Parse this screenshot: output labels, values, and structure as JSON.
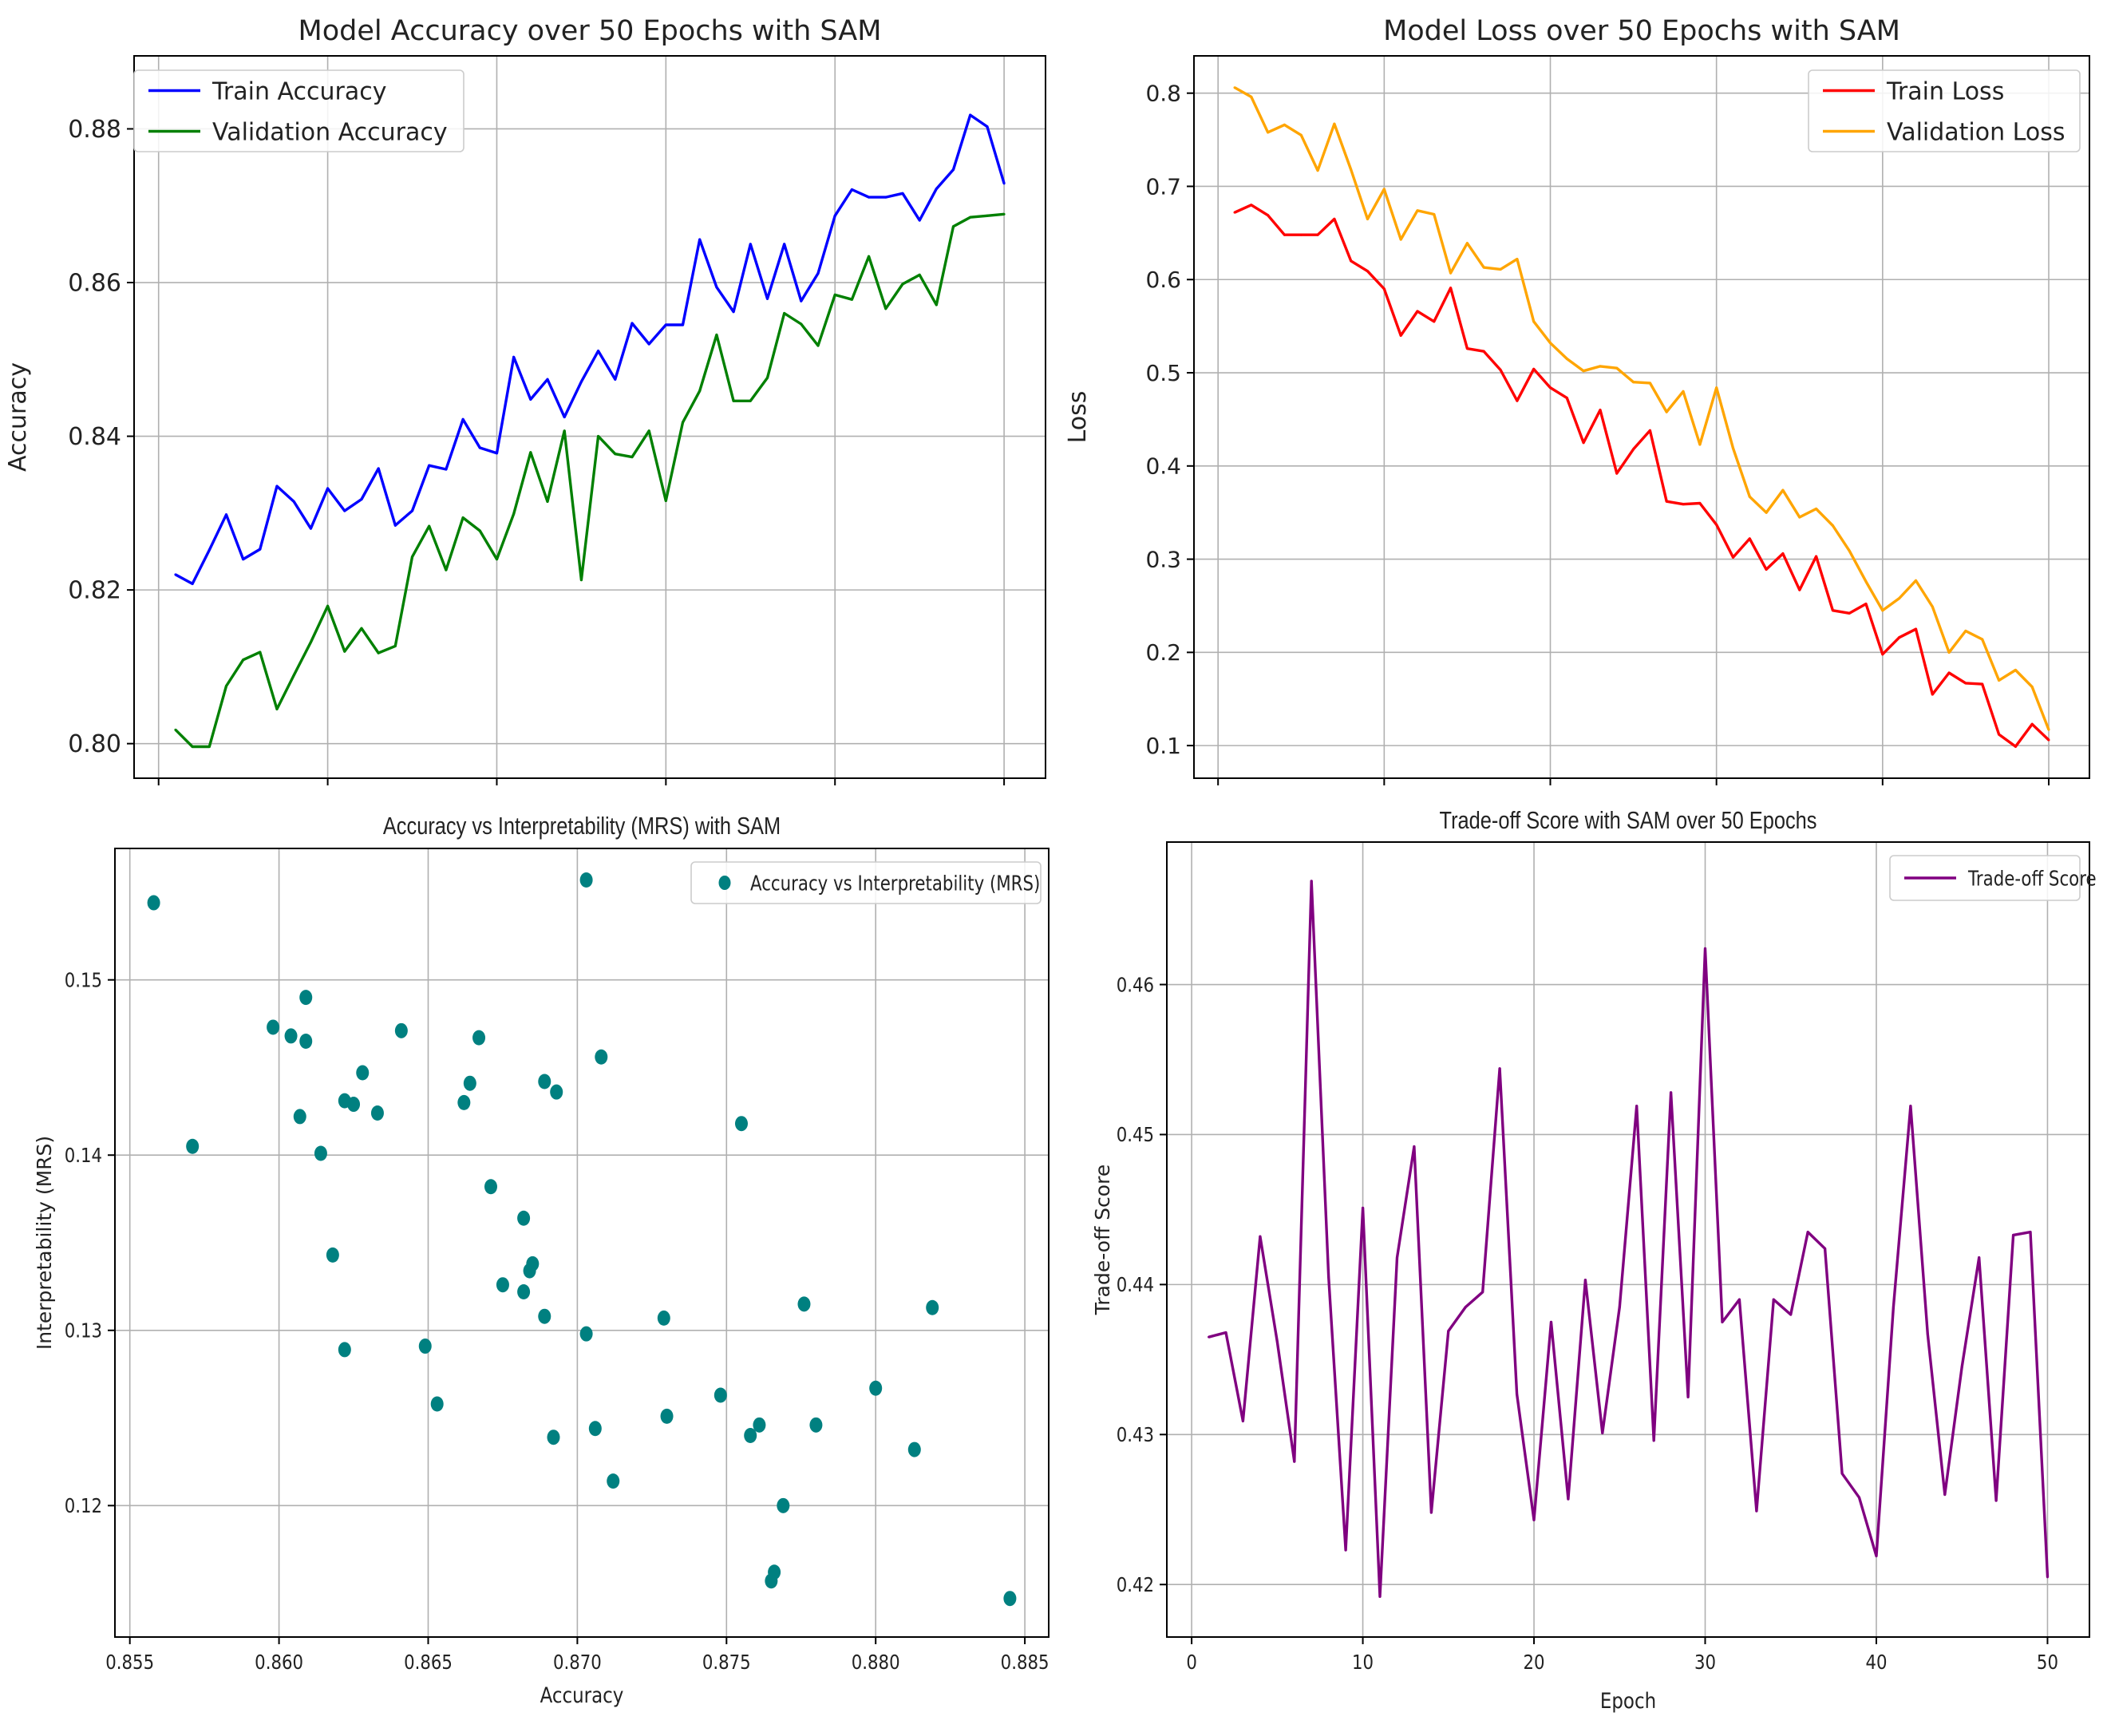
{
  "chart_data": [
    {
      "type": "line",
      "title": "Model Accuracy over 50 Epochs with SAM",
      "xlabel": "",
      "ylabel": "Accuracy",
      "xlim": [
        -1.45,
        52.45
      ],
      "ylim": [
        0.7955,
        0.8895
      ],
      "yticks": [
        0.8,
        0.82,
        0.84,
        0.86,
        0.88
      ],
      "ytick_labels": [
        "0.80",
        "0.82",
        "0.84",
        "0.86",
        "0.88"
      ],
      "xticks": [
        0,
        10,
        20,
        30,
        40,
        50
      ],
      "xtick_labels": [],
      "grid": true,
      "legend": "upper-left",
      "series": [
        {
          "name": "Train Accuracy",
          "color": "#0000ff",
          "x": [
            1,
            2,
            3,
            4,
            5,
            6,
            7,
            8,
            9,
            10,
            11,
            12,
            13,
            14,
            15,
            16,
            17,
            18,
            19,
            20,
            21,
            22,
            23,
            24,
            25,
            26,
            27,
            28,
            29,
            30,
            31,
            32,
            33,
            34,
            35,
            36,
            37,
            38,
            39,
            40,
            41,
            42,
            43,
            44,
            45,
            46,
            47,
            48,
            49,
            50
          ],
          "values": [
            0.822,
            0.8208,
            0.8252,
            0.8298,
            0.824,
            0.8253,
            0.8335,
            0.8315,
            0.828,
            0.8332,
            0.8303,
            0.8318,
            0.8358,
            0.8284,
            0.8303,
            0.8362,
            0.8357,
            0.8422,
            0.8385,
            0.8378,
            0.8503,
            0.8448,
            0.8474,
            0.8425,
            0.8471,
            0.8511,
            0.8474,
            0.8547,
            0.852,
            0.8545,
            0.8545,
            0.8656,
            0.8594,
            0.8562,
            0.865,
            0.8579,
            0.865,
            0.8576,
            0.8612,
            0.8687,
            0.8721,
            0.8711,
            0.8711,
            0.8716,
            0.8681,
            0.8722,
            0.8747,
            0.8818,
            0.8803,
            0.8729
          ]
        },
        {
          "name": "Validation Accuracy",
          "color": "#008000",
          "x": [
            1,
            2,
            3,
            4,
            5,
            6,
            7,
            8,
            9,
            10,
            11,
            12,
            13,
            14,
            15,
            16,
            17,
            18,
            19,
            20,
            21,
            22,
            23,
            24,
            25,
            26,
            27,
            28,
            29,
            30,
            31,
            32,
            33,
            34,
            35,
            36,
            37,
            38,
            39,
            40,
            41,
            42,
            43,
            44,
            45,
            46,
            47,
            48,
            49,
            50
          ],
          "values": [
            0.8018,
            0.7996,
            0.7996,
            0.8075,
            0.8109,
            0.8119,
            0.8045,
            0.8089,
            0.8132,
            0.8179,
            0.812,
            0.815,
            0.8118,
            0.8127,
            0.8243,
            0.8283,
            0.8226,
            0.8294,
            0.8277,
            0.824,
            0.8299,
            0.8379,
            0.8315,
            0.8407,
            0.8213,
            0.84,
            0.8377,
            0.8373,
            0.8407,
            0.8316,
            0.8418,
            0.8459,
            0.8532,
            0.8446,
            0.8446,
            0.8476,
            0.856,
            0.8546,
            0.8518,
            0.8584,
            0.8578,
            0.8634,
            0.8566,
            0.8598,
            0.861,
            0.8571,
            0.8673,
            0.8685,
            0.8687,
            0.8689
          ]
        }
      ]
    },
    {
      "type": "line",
      "title": "Model Loss over 50 Epochs with SAM",
      "xlabel": "",
      "ylabel": "Loss",
      "xlim": [
        -1.45,
        52.45
      ],
      "ylim": [
        0.065,
        0.84
      ],
      "yticks": [
        0.1,
        0.2,
        0.3,
        0.4,
        0.5,
        0.6,
        0.7,
        0.8
      ],
      "ytick_labels": [
        "0.1",
        "0.2",
        "0.3",
        "0.4",
        "0.5",
        "0.6",
        "0.7",
        "0.8"
      ],
      "xticks": [
        0,
        10,
        20,
        30,
        40,
        50
      ],
      "xtick_labels": [],
      "grid": true,
      "legend": "upper-right",
      "series": [
        {
          "name": "Train Loss",
          "color": "#ff0000",
          "x": [
            1,
            2,
            3,
            4,
            5,
            6,
            7,
            8,
            9,
            10,
            11,
            12,
            13,
            14,
            15,
            16,
            17,
            18,
            19,
            20,
            21,
            22,
            23,
            24,
            25,
            26,
            27,
            28,
            29,
            30,
            31,
            32,
            33,
            34,
            35,
            36,
            37,
            38,
            39,
            40,
            41,
            42,
            43,
            44,
            45,
            46,
            47,
            48,
            49,
            50
          ],
          "values": [
            0.672,
            0.68,
            0.669,
            0.648,
            0.648,
            0.648,
            0.665,
            0.62,
            0.609,
            0.59,
            0.54,
            0.566,
            0.555,
            0.591,
            0.526,
            0.523,
            0.503,
            0.47,
            0.504,
            0.484,
            0.473,
            0.425,
            0.46,
            0.392,
            0.418,
            0.438,
            0.362,
            0.359,
            0.36,
            0.337,
            0.302,
            0.322,
            0.289,
            0.306,
            0.267,
            0.303,
            0.245,
            0.242,
            0.252,
            0.198,
            0.216,
            0.225,
            0.155,
            0.178,
            0.167,
            0.166,
            0.112,
            0.099,
            0.123,
            0.106
          ]
        },
        {
          "name": "Validation Loss",
          "color": "#ffa500",
          "x": [
            1,
            2,
            3,
            4,
            5,
            6,
            7,
            8,
            9,
            10,
            11,
            12,
            13,
            14,
            15,
            16,
            17,
            18,
            19,
            20,
            21,
            22,
            23,
            24,
            25,
            26,
            27,
            28,
            29,
            30,
            31,
            32,
            33,
            34,
            35,
            36,
            37,
            38,
            39,
            40,
            41,
            42,
            43,
            44,
            45,
            46,
            47,
            48,
            49,
            50
          ],
          "values": [
            0.806,
            0.796,
            0.758,
            0.766,
            0.755,
            0.717,
            0.767,
            0.718,
            0.665,
            0.697,
            0.643,
            0.674,
            0.67,
            0.607,
            0.639,
            0.613,
            0.611,
            0.622,
            0.555,
            0.532,
            0.515,
            0.502,
            0.507,
            0.505,
            0.49,
            0.489,
            0.458,
            0.48,
            0.423,
            0.484,
            0.419,
            0.367,
            0.35,
            0.374,
            0.345,
            0.354,
            0.336,
            0.309,
            0.276,
            0.245,
            0.258,
            0.277,
            0.249,
            0.2,
            0.223,
            0.214,
            0.17,
            0.181,
            0.163,
            0.117
          ]
        }
      ]
    },
    {
      "type": "scatter",
      "title": "Accuracy vs Interpretability (MRS) with SAM",
      "xlabel": "Accuracy",
      "ylabel": "Interpretability (MRS)",
      "xlim": [
        0.8545,
        0.8858
      ],
      "ylim": [
        0.1125,
        0.1575
      ],
      "xticks": [
        0.855,
        0.86,
        0.865,
        0.87,
        0.875,
        0.88,
        0.885
      ],
      "xtick_labels": [
        "0.855",
        "0.860",
        "0.865",
        "0.870",
        "0.875",
        "0.880",
        "0.885"
      ],
      "yticks": [
        0.12,
        0.13,
        0.14,
        0.15
      ],
      "ytick_labels": [
        "0.12",
        "0.13",
        "0.14",
        "0.15"
      ],
      "grid": true,
      "legend": "upper-right",
      "series": [
        {
          "name": "Accuracy vs Interpretability (MRS)",
          "color": "#008080",
          "x": [
            0.8558,
            0.8571,
            0.8598,
            0.8604,
            0.8607,
            0.8609,
            0.8609,
            0.8614,
            0.8618,
            0.8622,
            0.8622,
            0.8625,
            0.8628,
            0.8633,
            0.8641,
            0.8649,
            0.8653,
            0.8662,
            0.8664,
            0.8667,
            0.8671,
            0.8675,
            0.8682,
            0.8682,
            0.8684,
            0.8685,
            0.8689,
            0.8689,
            0.8692,
            0.8693,
            0.8703,
            0.8703,
            0.8706,
            0.8708,
            0.8712,
            0.8729,
            0.873,
            0.8748,
            0.8755,
            0.8758,
            0.8761,
            0.8765,
            0.8766,
            0.8769,
            0.8776,
            0.878,
            0.88,
            0.8813,
            0.8819,
            0.8845
          ],
          "values": [
            0.1544,
            0.1405,
            0.1473,
            0.1468,
            0.1422,
            0.149,
            0.1465,
            0.1401,
            0.1343,
            0.1431,
            0.1289,
            0.1429,
            0.1447,
            0.1424,
            0.1471,
            0.1291,
            0.1258,
            0.143,
            0.1441,
            0.1467,
            0.1382,
            0.1326,
            0.1364,
            0.1322,
            0.1334,
            0.1338,
            0.1442,
            0.1308,
            0.1239,
            0.1436,
            0.1557,
            0.1298,
            0.1244,
            0.1456,
            0.1214,
            0.1307,
            0.1251,
            0.1263,
            0.1418,
            0.124,
            0.1246,
            0.1157,
            0.1162,
            0.12,
            0.1315,
            0.1246,
            0.1267,
            0.1232,
            0.1313,
            0.1147
          ]
        }
      ]
    },
    {
      "type": "line",
      "title": "Trade-off Score with SAM over 50 Epochs",
      "xlabel": "Epoch",
      "ylabel": "Trade-off Score",
      "xlim": [
        -1.45,
        52.45
      ],
      "ylim": [
        0.4165,
        0.4695
      ],
      "xticks": [
        0,
        10,
        20,
        30,
        40,
        50
      ],
      "xtick_labels": [
        "0",
        "10",
        "20",
        "30",
        "40",
        "50"
      ],
      "yticks": [
        0.42,
        0.43,
        0.44,
        0.45,
        0.46
      ],
      "ytick_labels": [
        "0.42",
        "0.43",
        "0.44",
        "0.45",
        "0.46"
      ],
      "grid": true,
      "legend": "upper-right",
      "series": [
        {
          "name": "Trade-off Score",
          "color": "#800080",
          "x": [
            1,
            2,
            3,
            4,
            5,
            6,
            7,
            8,
            9,
            10,
            11,
            12,
            13,
            14,
            15,
            16,
            17,
            18,
            19,
            20,
            21,
            22,
            23,
            24,
            25,
            26,
            27,
            28,
            29,
            30,
            31,
            32,
            33,
            34,
            35,
            36,
            37,
            38,
            39,
            40,
            41,
            42,
            43,
            44,
            45,
            46,
            47,
            48,
            49,
            50
          ],
          "values": [
            0.4365,
            0.4368,
            0.4309,
            0.4432,
            0.4362,
            0.4282,
            0.4669,
            0.4405,
            0.4223,
            0.4451,
            0.4192,
            0.4418,
            0.4492,
            0.4248,
            0.4369,
            0.4385,
            0.4395,
            0.4544,
            0.4327,
            0.4243,
            0.4375,
            0.4257,
            0.4403,
            0.4301,
            0.4385,
            0.4519,
            0.4296,
            0.4528,
            0.4325,
            0.4624,
            0.4375,
            0.439,
            0.4249,
            0.439,
            0.438,
            0.4435,
            0.4424,
            0.4274,
            0.4258,
            0.4219,
            0.4385,
            0.4519,
            0.4367,
            0.426,
            0.4345,
            0.4418,
            0.4256,
            0.4433,
            0.4435,
            0.4205
          ]
        }
      ]
    }
  ]
}
